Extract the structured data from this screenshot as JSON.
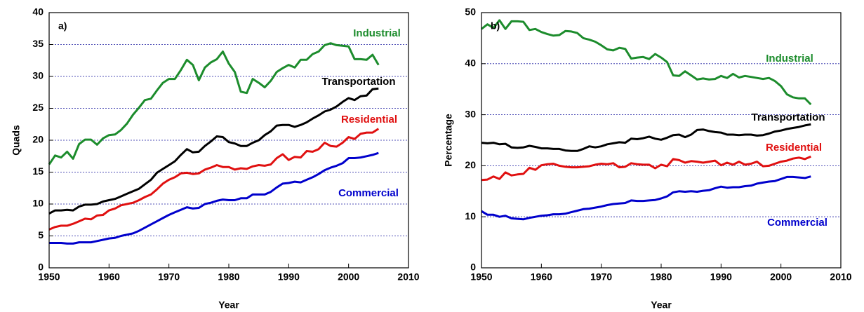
{
  "chart_data": [
    {
      "type": "line",
      "title": "a)",
      "xlabel": "Year",
      "ylabel": "Quads",
      "x": [
        1950,
        1951,
        1952,
        1953,
        1954,
        1955,
        1956,
        1957,
        1958,
        1959,
        1960,
        1961,
        1962,
        1963,
        1964,
        1965,
        1966,
        1967,
        1968,
        1969,
        1970,
        1971,
        1972,
        1973,
        1974,
        1975,
        1976,
        1977,
        1978,
        1979,
        1980,
        1981,
        1982,
        1983,
        1984,
        1985,
        1986,
        1987,
        1988,
        1989,
        1990,
        1991,
        1992,
        1993,
        1994,
        1995,
        1996,
        1997,
        1998,
        1999,
        2000,
        2001,
        2002,
        2003,
        2004,
        2005
      ],
      "xlim": [
        1950,
        2010
      ],
      "xticks": [
        1950,
        1960,
        1970,
        1980,
        1990,
        2000,
        2010
      ],
      "ylim": [
        0,
        40
      ],
      "yticks": [
        0,
        5,
        10,
        15,
        20,
        25,
        30,
        35,
        40
      ],
      "grid": true,
      "series": [
        {
          "name": "Industrial",
          "color": "#1c8c2c",
          "values": [
            16.2,
            17.6,
            17.3,
            18.2,
            17.1,
            19.4,
            20.1,
            20.1,
            19.3,
            20.3,
            20.8,
            20.9,
            21.6,
            22.6,
            24.0,
            25.1,
            26.3,
            26.5,
            27.8,
            29.0,
            29.6,
            29.6,
            31.0,
            32.6,
            31.8,
            29.4,
            31.4,
            32.2,
            32.7,
            33.9,
            32.0,
            30.7,
            27.6,
            27.4,
            29.6,
            29.0,
            28.3,
            29.3,
            30.7,
            31.3,
            31.8,
            31.4,
            32.6,
            32.6,
            33.5,
            33.9,
            34.9,
            35.2,
            34.9,
            34.8,
            34.7,
            32.7,
            32.7,
            32.6,
            33.4,
            31.8
          ]
        },
        {
          "name": "Transportation",
          "color": "#000000",
          "values": [
            8.5,
            9.0,
            9.0,
            9.1,
            9.0,
            9.6,
            9.9,
            9.9,
            10.0,
            10.4,
            10.6,
            10.8,
            11.2,
            11.6,
            12.0,
            12.4,
            13.1,
            13.8,
            14.9,
            15.5,
            16.1,
            16.7,
            17.7,
            18.6,
            18.1,
            18.2,
            19.1,
            19.8,
            20.6,
            20.5,
            19.7,
            19.5,
            19.1,
            19.1,
            19.6,
            20.0,
            20.8,
            21.4,
            22.3,
            22.4,
            22.4,
            22.1,
            22.4,
            22.8,
            23.4,
            23.9,
            24.5,
            24.8,
            25.3,
            26.0,
            26.6,
            26.3,
            26.9,
            27.0,
            28.0,
            28.1
          ]
        },
        {
          "name": "Residential",
          "color": "#e01010",
          "values": [
            6.0,
            6.4,
            6.6,
            6.6,
            6.9,
            7.3,
            7.7,
            7.6,
            8.2,
            8.3,
            9.0,
            9.3,
            9.8,
            10.0,
            10.2,
            10.6,
            11.1,
            11.5,
            12.3,
            13.2,
            13.8,
            14.2,
            14.8,
            14.9,
            14.7,
            14.8,
            15.4,
            15.7,
            16.1,
            15.8,
            15.8,
            15.4,
            15.6,
            15.5,
            15.9,
            16.1,
            16.0,
            16.2,
            17.2,
            17.8,
            16.9,
            17.4,
            17.3,
            18.3,
            18.2,
            18.6,
            19.6,
            19.1,
            19.0,
            19.6,
            20.5,
            20.2,
            21.0,
            21.2,
            21.2,
            21.8
          ]
        },
        {
          "name": "Commercial",
          "color": "#0000cc",
          "values": [
            3.9,
            3.9,
            3.9,
            3.8,
            3.8,
            4.0,
            4.0,
            4.0,
            4.2,
            4.4,
            4.6,
            4.7,
            5.0,
            5.2,
            5.4,
            5.8,
            6.3,
            6.8,
            7.3,
            7.8,
            8.3,
            8.7,
            9.1,
            9.5,
            9.3,
            9.4,
            10.0,
            10.2,
            10.5,
            10.7,
            10.6,
            10.6,
            10.9,
            10.9,
            11.5,
            11.5,
            11.5,
            11.9,
            12.6,
            13.2,
            13.3,
            13.5,
            13.4,
            13.8,
            14.2,
            14.7,
            15.3,
            15.7,
            16.0,
            16.4,
            17.2,
            17.2,
            17.3,
            17.5,
            17.7,
            18.0
          ]
        }
      ]
    },
    {
      "type": "line",
      "title": "b)",
      "xlabel": "Year",
      "ylabel": "Percentage",
      "x": [
        1950,
        1951,
        1952,
        1953,
        1954,
        1955,
        1956,
        1957,
        1958,
        1959,
        1960,
        1961,
        1962,
        1963,
        1964,
        1965,
        1966,
        1967,
        1968,
        1969,
        1970,
        1971,
        1972,
        1973,
        1974,
        1975,
        1976,
        1977,
        1978,
        1979,
        1980,
        1981,
        1982,
        1983,
        1984,
        1985,
        1986,
        1987,
        1988,
        1989,
        1990,
        1991,
        1992,
        1993,
        1994,
        1995,
        1996,
        1997,
        1998,
        1999,
        2000,
        2001,
        2002,
        2003,
        2004,
        2005
      ],
      "xlim": [
        1950,
        2010
      ],
      "xticks": [
        1950,
        1960,
        1970,
        1980,
        1990,
        2000,
        2010
      ],
      "ylim": [
        0,
        50
      ],
      "yticks": [
        0,
        10,
        20,
        30,
        40,
        50
      ],
      "grid": true,
      "series": [
        {
          "name": "Industrial",
          "color": "#1c8c2c",
          "values": [
            46.8,
            47.7,
            47.0,
            48.5,
            46.8,
            48.3,
            48.3,
            48.2,
            46.6,
            46.8,
            46.2,
            45.8,
            45.5,
            45.6,
            46.4,
            46.3,
            46.0,
            45.0,
            44.7,
            44.3,
            43.6,
            42.8,
            42.6,
            43.1,
            42.9,
            41.0,
            41.2,
            41.3,
            40.9,
            41.9,
            41.2,
            40.3,
            37.7,
            37.6,
            38.5,
            37.7,
            36.9,
            37.1,
            36.9,
            37.0,
            37.6,
            37.2,
            38.0,
            37.3,
            37.6,
            37.4,
            37.2,
            37.0,
            37.2,
            36.6,
            35.6,
            34.0,
            33.4,
            33.2,
            33.2,
            32.0
          ]
        },
        {
          "name": "Transportation",
          "color": "#000000",
          "values": [
            24.5,
            24.4,
            24.5,
            24.2,
            24.3,
            23.6,
            23.5,
            23.6,
            23.9,
            23.7,
            23.4,
            23.4,
            23.3,
            23.3,
            23.0,
            22.9,
            22.9,
            23.3,
            23.8,
            23.6,
            23.8,
            24.2,
            24.4,
            24.6,
            24.5,
            25.3,
            25.2,
            25.4,
            25.7,
            25.3,
            25.1,
            25.5,
            26.0,
            26.1,
            25.6,
            26.1,
            27.0,
            27.1,
            26.8,
            26.6,
            26.5,
            26.1,
            26.1,
            26.0,
            26.1,
            26.1,
            25.9,
            26.0,
            26.3,
            26.7,
            26.9,
            27.2,
            27.4,
            27.6,
            27.9,
            28.1
          ]
        },
        {
          "name": "Residential",
          "color": "#e01010",
          "values": [
            17.2,
            17.3,
            17.9,
            17.4,
            18.7,
            18.1,
            18.3,
            18.4,
            19.6,
            19.2,
            20.1,
            20.3,
            20.4,
            20.0,
            19.8,
            19.7,
            19.7,
            19.8,
            19.9,
            20.2,
            20.4,
            20.3,
            20.5,
            19.7,
            19.8,
            20.5,
            20.3,
            20.2,
            20.2,
            19.5,
            20.2,
            19.9,
            21.3,
            21.1,
            20.6,
            20.9,
            20.8,
            20.6,
            20.8,
            21.0,
            20.1,
            20.6,
            20.2,
            20.8,
            20.2,
            20.4,
            20.8,
            19.9,
            20.0,
            20.4,
            20.8,
            21.0,
            21.4,
            21.6,
            21.3,
            21.8
          ]
        },
        {
          "name": "Commercial",
          "color": "#0000cc",
          "values": [
            11.1,
            10.4,
            10.4,
            10.0,
            10.2,
            9.7,
            9.6,
            9.5,
            9.8,
            10.0,
            10.2,
            10.3,
            10.5,
            10.5,
            10.6,
            10.9,
            11.2,
            11.5,
            11.6,
            11.8,
            12.0,
            12.3,
            12.5,
            12.6,
            12.7,
            13.2,
            13.1,
            13.1,
            13.2,
            13.3,
            13.6,
            14.0,
            14.8,
            15.0,
            14.9,
            15.0,
            14.9,
            15.1,
            15.2,
            15.6,
            15.9,
            15.7,
            15.8,
            15.8,
            16.0,
            16.1,
            16.5,
            16.7,
            16.9,
            17.0,
            17.4,
            17.8,
            17.8,
            17.7,
            17.6,
            17.9
          ]
        }
      ]
    }
  ]
}
